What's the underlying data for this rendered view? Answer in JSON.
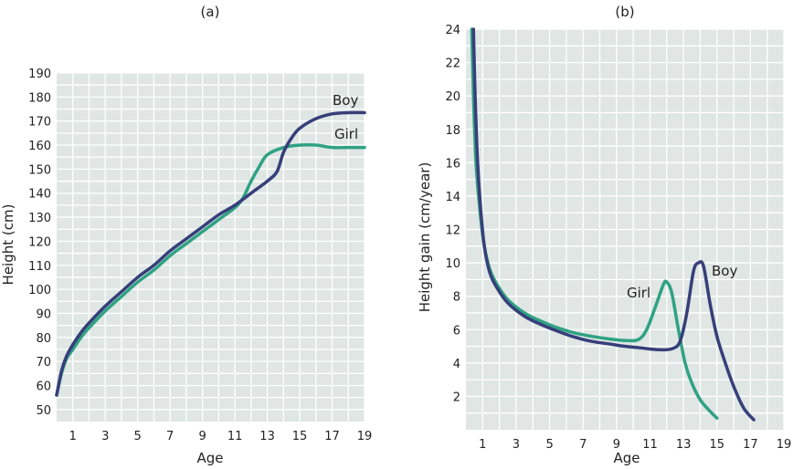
{
  "colors": {
    "background": "#dfe6e4",
    "grid": "#ffffff",
    "boy": "#363f7a",
    "girl": "#2fa283"
  },
  "chart_data": [
    {
      "type": "line",
      "panel_label": "(a)",
      "xlabel": "Age",
      "ylabel": "Height (cm)",
      "xlim": [
        0,
        19
      ],
      "ylim": [
        45,
        190
      ],
      "xticks": [
        1,
        3,
        5,
        7,
        9,
        11,
        13,
        15,
        17,
        19
      ],
      "yticks": [
        50,
        60,
        70,
        80,
        90,
        100,
        110,
        120,
        130,
        140,
        150,
        160,
        170,
        180,
        190
      ],
      "grid": true,
      "series": [
        {
          "name": "Boy",
          "color": "#363f7a",
          "points": [
            [
              0,
              56
            ],
            [
              0.3,
              66
            ],
            [
              0.6,
              72
            ],
            [
              1,
              77
            ],
            [
              1.5,
              82
            ],
            [
              2,
              86
            ],
            [
              3,
              93
            ],
            [
              4,
              99
            ],
            [
              5,
              105
            ],
            [
              6,
              110
            ],
            [
              7,
              116
            ],
            [
              8,
              121
            ],
            [
              9,
              126
            ],
            [
              10,
              131
            ],
            [
              11,
              135
            ],
            [
              12,
              140
            ],
            [
              13,
              145
            ],
            [
              13.6,
              149
            ],
            [
              14,
              157
            ],
            [
              14.5,
              163
            ],
            [
              15,
              167
            ],
            [
              16,
              171
            ],
            [
              17,
              173
            ],
            [
              18,
              173.5
            ],
            [
              19,
              173.5
            ]
          ]
        },
        {
          "name": "Girl",
          "color": "#2fa283",
          "points": [
            [
              0,
              56
            ],
            [
              0.3,
              65
            ],
            [
              0.6,
              71
            ],
            [
              1,
              75
            ],
            [
              1.5,
              80
            ],
            [
              2,
              84
            ],
            [
              3,
              91
            ],
            [
              4,
              97
            ],
            [
              5,
              103
            ],
            [
              6,
              108
            ],
            [
              7,
              114
            ],
            [
              8,
              119
            ],
            [
              9,
              124
            ],
            [
              10,
              129
            ],
            [
              11,
              134
            ],
            [
              11.5,
              138
            ],
            [
              12,
              145
            ],
            [
              12.5,
              151
            ],
            [
              13,
              156
            ],
            [
              14,
              159
            ],
            [
              15,
              160
            ],
            [
              16,
              160
            ],
            [
              17,
              159
            ],
            [
              18,
              159
            ],
            [
              19,
              159
            ]
          ]
        }
      ]
    },
    {
      "type": "line",
      "panel_label": "(b)",
      "xlabel": "Age",
      "ylabel": "Height gain (cm/year)",
      "xlim": [
        0,
        19
      ],
      "ylim": [
        0,
        24
      ],
      "xticks": [
        1,
        3,
        5,
        7,
        9,
        11,
        13,
        15,
        17,
        19
      ],
      "yticks": [
        2,
        4,
        6,
        8,
        10,
        12,
        14,
        16,
        18,
        20,
        22,
        24
      ],
      "grid": true,
      "series": [
        {
          "name": "Boy",
          "color": "#363f7a",
          "points": [
            [
              0.45,
              24
            ],
            [
              0.55,
              20
            ],
            [
              0.7,
              16
            ],
            [
              0.9,
              13
            ],
            [
              1.1,
              11
            ],
            [
              1.4,
              9.5
            ],
            [
              1.8,
              8.6
            ],
            [
              2.5,
              7.6
            ],
            [
              3.5,
              6.8
            ],
            [
              4.5,
              6.3
            ],
            [
              5.5,
              5.9
            ],
            [
              6.5,
              5.55
            ],
            [
              7.5,
              5.3
            ],
            [
              8.5,
              5.15
            ],
            [
              9.5,
              5.0
            ],
            [
              10.5,
              4.9
            ],
            [
              11.5,
              4.8
            ],
            [
              12.3,
              4.85
            ],
            [
              12.8,
              5.3
            ],
            [
              13.2,
              7.0
            ],
            [
              13.6,
              9.5
            ],
            [
              13.9,
              10.0
            ],
            [
              14.2,
              9.8
            ],
            [
              14.6,
              7.5
            ],
            [
              15.0,
              5.6
            ],
            [
              15.5,
              4.0
            ],
            [
              16.0,
              2.6
            ],
            [
              16.6,
              1.3
            ],
            [
              17.2,
              0.6
            ]
          ]
        },
        {
          "name": "Girl",
          "color": "#2fa283",
          "points": [
            [
              0.35,
              24
            ],
            [
              0.45,
              20
            ],
            [
              0.6,
              16
            ],
            [
              0.85,
              13
            ],
            [
              1.1,
              11
            ],
            [
              1.4,
              9.7
            ],
            [
              1.8,
              8.8
            ],
            [
              2.5,
              7.8
            ],
            [
              3.5,
              7.0
            ],
            [
              4.5,
              6.5
            ],
            [
              5.5,
              6.1
            ],
            [
              6.5,
              5.8
            ],
            [
              7.5,
              5.6
            ],
            [
              8.5,
              5.45
            ],
            [
              9.5,
              5.35
            ],
            [
              10.3,
              5.4
            ],
            [
              10.8,
              6.0
            ],
            [
              11.3,
              7.3
            ],
            [
              11.8,
              8.7
            ],
            [
              12.0,
              8.85
            ],
            [
              12.3,
              8.2
            ],
            [
              12.7,
              6.0
            ],
            [
              13.1,
              4.0
            ],
            [
              13.5,
              2.8
            ],
            [
              14.0,
              1.8
            ],
            [
              14.5,
              1.2
            ],
            [
              15.0,
              0.7
            ]
          ]
        }
      ]
    }
  ]
}
